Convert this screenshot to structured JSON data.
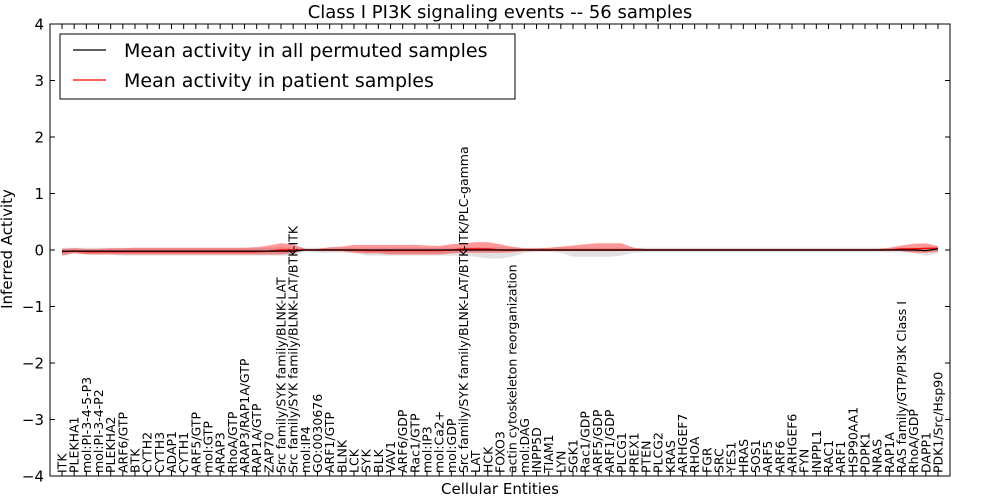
{
  "chart_data": {
    "type": "line",
    "title": "Class I PI3K signaling events -- 56 samples",
    "xlabel": "Cellular Entities",
    "ylabel": "Inferred Activity",
    "ylim": [
      -4,
      4
    ],
    "yticks": [
      -4,
      -3,
      -2,
      -1,
      0,
      1,
      2,
      3,
      4
    ],
    "ytick_labels": [
      "−4",
      "−3",
      "−2",
      "−1",
      "0",
      "1",
      "2",
      "3",
      "4"
    ],
    "grid": false,
    "legend_position": "top-left",
    "categories": [
      "ITK",
      "PLEKHA1",
      "mol:PI-3-4-5-P3",
      "mol:PI-3-4-P2",
      "PLEKHA2",
      "ARF6/GTP",
      "BTK",
      "CYTH2",
      "CYTH3",
      "ADAP1",
      "CYTH1",
      "ARF5/GTP",
      "mol:GTP",
      "ARAP3",
      "RhoA/GTP",
      "ARAP3/RAP1A/GTP",
      "RAP1A/GTP",
      "ZAP70",
      "Src family/SYK family/BLNK-LAT",
      "Src family/SYK family/BLNK-LAT/BTK-ITK",
      "mol:IP4",
      "GO:0030676",
      "ARF1/GTP",
      "BLNK",
      "LCK",
      "SYK",
      "BLK",
      "VAV1",
      "ARF6/GDP",
      "Rac1/GTP",
      "mol:IP3",
      "mol:Ca2+",
      "mol:GDP",
      "Src family/SYK family/BLNK-LAT/BTK-ITK/PLC-gamma",
      "LAT",
      "HCK",
      "FOXO3",
      "actin cytoskeleton reorganization",
      "mol:DAG",
      "INPP5D",
      "TIAM1",
      "LYN",
      "SGK1",
      "Rac1/GDP",
      "ARF5/GDP",
      "ARF1/GDP",
      "PLCG1",
      "PREX1",
      "PTEN",
      "PLCG2",
      "KRAS",
      "ARHGEF7",
      "RHOA",
      "FGR",
      "SRC",
      "YES1",
      "HRAS",
      "SOS1",
      "ARF5",
      "ARF6",
      "ARHGEF6",
      "FYN",
      "INPPL1",
      "RAC1",
      "ARF1",
      "HSP90AA1",
      "PDPK1",
      "NRAS",
      "RAP1A",
      "RAS family/GTP/PI3K Class I",
      "RhoA/GDP",
      "DAPP1",
      "PDK1/Src/Hsp90"
    ],
    "series": [
      {
        "name": "Mean activity in all permuted samples",
        "color": "#000000",
        "values": [
          -0.02,
          -0.02,
          -0.02,
          -0.02,
          -0.02,
          -0.02,
          -0.02,
          -0.02,
          -0.02,
          -0.02,
          -0.02,
          -0.02,
          -0.02,
          -0.02,
          -0.02,
          -0.02,
          -0.02,
          -0.02,
          -0.02,
          -0.02,
          0.0,
          0.0,
          0.0,
          0.0,
          0.0,
          0.0,
          0.0,
          0.0,
          0.0,
          0.0,
          0.0,
          0.0,
          0.0,
          0.0,
          0.0,
          0.0,
          0.0,
          0.0,
          0.0,
          0.0,
          0.0,
          0.0,
          0.0,
          0.0,
          0.0,
          0.0,
          0.0,
          0.0,
          0.0,
          0.0,
          0.0,
          0.0,
          0.0,
          0.0,
          0.0,
          0.0,
          0.0,
          0.0,
          0.0,
          0.0,
          0.0,
          0.0,
          0.0,
          0.0,
          0.0,
          0.0,
          0.0,
          0.0,
          0.0,
          0.0,
          0.0,
          -0.01,
          0.02
        ],
        "band_lower": [
          -0.08,
          -0.05,
          -0.08,
          -0.08,
          -0.08,
          -0.1,
          -0.1,
          -0.1,
          -0.1,
          -0.1,
          -0.1,
          -0.1,
          -0.1,
          -0.1,
          -0.1,
          -0.1,
          -0.1,
          -0.1,
          -0.1,
          -0.1,
          -0.03,
          -0.05,
          -0.05,
          -0.05,
          -0.05,
          -0.1,
          -0.1,
          -0.1,
          -0.1,
          -0.1,
          -0.1,
          -0.1,
          -0.1,
          -0.1,
          -0.12,
          -0.15,
          -0.15,
          -0.12,
          -0.05,
          -0.03,
          -0.03,
          -0.05,
          -0.12,
          -0.12,
          -0.12,
          -0.12,
          -0.1,
          -0.05,
          -0.04,
          -0.04,
          -0.04,
          -0.04,
          -0.04,
          -0.04,
          -0.04,
          -0.04,
          -0.04,
          -0.04,
          -0.04,
          -0.04,
          -0.04,
          -0.04,
          -0.04,
          -0.04,
          -0.04,
          -0.04,
          -0.04,
          -0.04,
          -0.04,
          -0.04,
          -0.05,
          -0.1,
          -0.06
        ],
        "band_upper": [
          0.04,
          0.04,
          0.04,
          0.04,
          0.04,
          0.04,
          0.04,
          0.04,
          0.04,
          0.04,
          0.04,
          0.04,
          0.04,
          0.04,
          0.04,
          0.04,
          0.04,
          0.04,
          0.05,
          0.05,
          0.04,
          0.04,
          0.04,
          0.04,
          0.04,
          0.04,
          0.04,
          0.04,
          0.04,
          0.04,
          0.04,
          0.04,
          0.04,
          0.05,
          0.05,
          0.05,
          0.05,
          0.04,
          0.04,
          0.04,
          0.04,
          0.04,
          0.04,
          0.04,
          0.04,
          0.04,
          0.04,
          0.04,
          0.04,
          0.04,
          0.04,
          0.04,
          0.04,
          0.04,
          0.04,
          0.04,
          0.04,
          0.04,
          0.04,
          0.04,
          0.04,
          0.04,
          0.04,
          0.04,
          0.04,
          0.04,
          0.04,
          0.04,
          0.04,
          0.04,
          0.04,
          0.04,
          0.04
        ]
      },
      {
        "name": "Mean activity in patient samples",
        "color": "#ff0000",
        "values": [
          -0.03,
          -0.02,
          -0.03,
          -0.03,
          -0.03,
          -0.03,
          -0.03,
          -0.03,
          -0.03,
          -0.03,
          -0.03,
          -0.03,
          -0.03,
          -0.03,
          -0.03,
          -0.03,
          -0.03,
          -0.02,
          0.0,
          0.0,
          0.0,
          0.0,
          0.0,
          0.0,
          0.0,
          -0.01,
          -0.01,
          -0.01,
          -0.01,
          -0.01,
          -0.01,
          -0.01,
          0.0,
          0.02,
          0.02,
          0.02,
          0.0,
          0.0,
          0.0,
          0.0,
          0.0,
          0.0,
          0.0,
          0.0,
          0.0,
          0.0,
          0.0,
          0.0,
          0.0,
          0.0,
          0.0,
          0.0,
          0.0,
          0.0,
          0.0,
          0.0,
          0.0,
          0.0,
          0.0,
          0.0,
          0.0,
          0.0,
          0.0,
          0.0,
          0.0,
          0.0,
          0.0,
          0.0,
          0.0,
          0.02,
          0.02,
          0.03,
          0.03
        ],
        "band_lower": [
          -0.1,
          -0.06,
          -0.08,
          -0.08,
          -0.08,
          -0.08,
          -0.08,
          -0.08,
          -0.08,
          -0.08,
          -0.08,
          -0.08,
          -0.08,
          -0.08,
          -0.08,
          -0.08,
          -0.08,
          -0.08,
          -0.08,
          -0.06,
          0.0,
          -0.02,
          -0.02,
          -0.02,
          -0.05,
          -0.06,
          -0.06,
          -0.08,
          -0.08,
          -0.08,
          -0.08,
          -0.08,
          -0.06,
          -0.05,
          -0.05,
          -0.05,
          -0.05,
          -0.04,
          -0.02,
          -0.02,
          -0.02,
          -0.02,
          -0.02,
          -0.02,
          -0.02,
          -0.02,
          -0.02,
          -0.01,
          -0.01,
          -0.01,
          -0.01,
          -0.01,
          -0.01,
          -0.01,
          -0.01,
          -0.01,
          -0.01,
          -0.01,
          -0.01,
          -0.01,
          -0.01,
          -0.01,
          -0.01,
          -0.01,
          -0.01,
          -0.01,
          -0.01,
          -0.01,
          -0.01,
          -0.02,
          -0.05,
          -0.05,
          -0.03
        ],
        "band_upper": [
          0.02,
          0.03,
          0.02,
          0.02,
          0.03,
          0.03,
          0.04,
          0.04,
          0.04,
          0.04,
          0.04,
          0.04,
          0.04,
          0.04,
          0.04,
          0.04,
          0.05,
          0.08,
          0.12,
          0.1,
          0.02,
          0.02,
          0.05,
          0.06,
          0.09,
          0.09,
          0.09,
          0.09,
          0.09,
          0.09,
          0.08,
          0.07,
          0.1,
          0.12,
          0.14,
          0.14,
          0.1,
          0.06,
          0.03,
          0.03,
          0.04,
          0.06,
          0.08,
          0.1,
          0.12,
          0.12,
          0.12,
          0.04,
          0.02,
          0.02,
          0.02,
          0.02,
          0.02,
          0.02,
          0.02,
          0.02,
          0.02,
          0.02,
          0.02,
          0.02,
          0.02,
          0.02,
          0.02,
          0.02,
          0.02,
          0.02,
          0.02,
          0.02,
          0.04,
          0.08,
          0.11,
          0.12,
          0.07
        ]
      }
    ]
  }
}
